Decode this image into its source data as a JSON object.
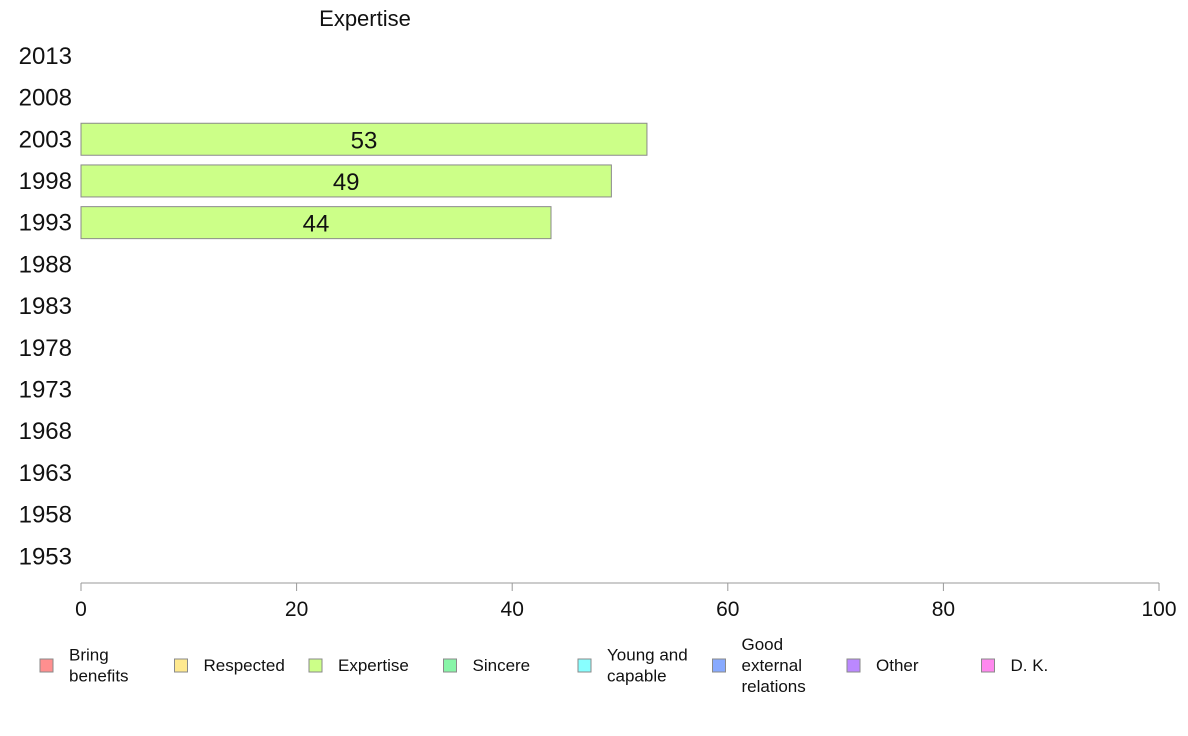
{
  "chart_data": {
    "type": "bar",
    "orientation": "horizontal",
    "title": "Expertise",
    "categories": [
      "2013",
      "2008",
      "2003",
      "1998",
      "1993",
      "1988",
      "1983",
      "1978",
      "1973",
      "1968",
      "1963",
      "1958",
      "1953"
    ],
    "series": [
      {
        "name": "Expertise",
        "values": [
          null,
          null,
          52.5,
          49.2,
          43.6,
          null,
          null,
          null,
          null,
          null,
          null,
          null,
          null
        ],
        "labels": [
          "",
          "",
          "53",
          "49",
          "44",
          "",
          "",
          "",
          "",
          "",
          "",
          "",
          ""
        ]
      }
    ],
    "xlim": [
      0,
      100
    ],
    "xticks": [
      "0",
      "20",
      "40",
      "60",
      "80",
      "100"
    ],
    "grid": false,
    "legend_placement": "bottom",
    "legend": [
      {
        "lines": [
          "Bring",
          "benefits"
        ],
        "color": "#ff8f8f"
      },
      {
        "lines": [
          "Respected"
        ],
        "color": "#ffe98f"
      },
      {
        "lines": [
          "Expertise"
        ],
        "color": "#ccff88"
      },
      {
        "lines": [
          "Sincere"
        ],
        "color": "#88f5a8"
      },
      {
        "lines": [
          "Young and",
          "capable"
        ],
        "color": "#88ffff"
      },
      {
        "lines": [
          "Good",
          "external",
          "relations"
        ],
        "color": "#88aaff"
      },
      {
        "lines": [
          "Other"
        ],
        "color": "#bb88ff"
      },
      {
        "lines": [
          "D. K."
        ],
        "color": "#ff88ee"
      }
    ],
    "bar_color": "#ccff88"
  }
}
